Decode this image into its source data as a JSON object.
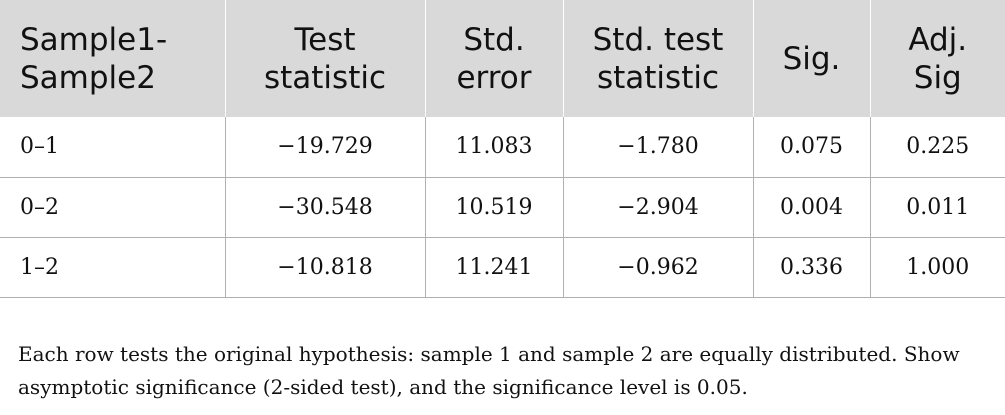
{
  "table": {
    "headers": [
      [
        "Sample1-",
        "Sample2"
      ],
      [
        "Test",
        "statistic"
      ],
      [
        "Std.",
        "error"
      ],
      [
        "Std. test",
        "statistic"
      ],
      [
        "Sig.",
        ""
      ],
      [
        "Adj.",
        "Sig"
      ]
    ],
    "rows": [
      [
        "0–1",
        "−19.729",
        "11.083",
        "−1.780",
        "0.075",
        "0.225"
      ],
      [
        "0–2",
        "−30.548",
        "10.519",
        "−2.904",
        "0.004",
        "0.011"
      ],
      [
        "1–2",
        "−10.818",
        "11.241",
        "−0.962",
        "0.336",
        "1.000"
      ]
    ]
  },
  "footnote": "Each row tests the original hypothesis: sample 1 and sample 2 are equally distributed. Show asymptotic significance (2-sided test), and the significance level is 0.05."
}
